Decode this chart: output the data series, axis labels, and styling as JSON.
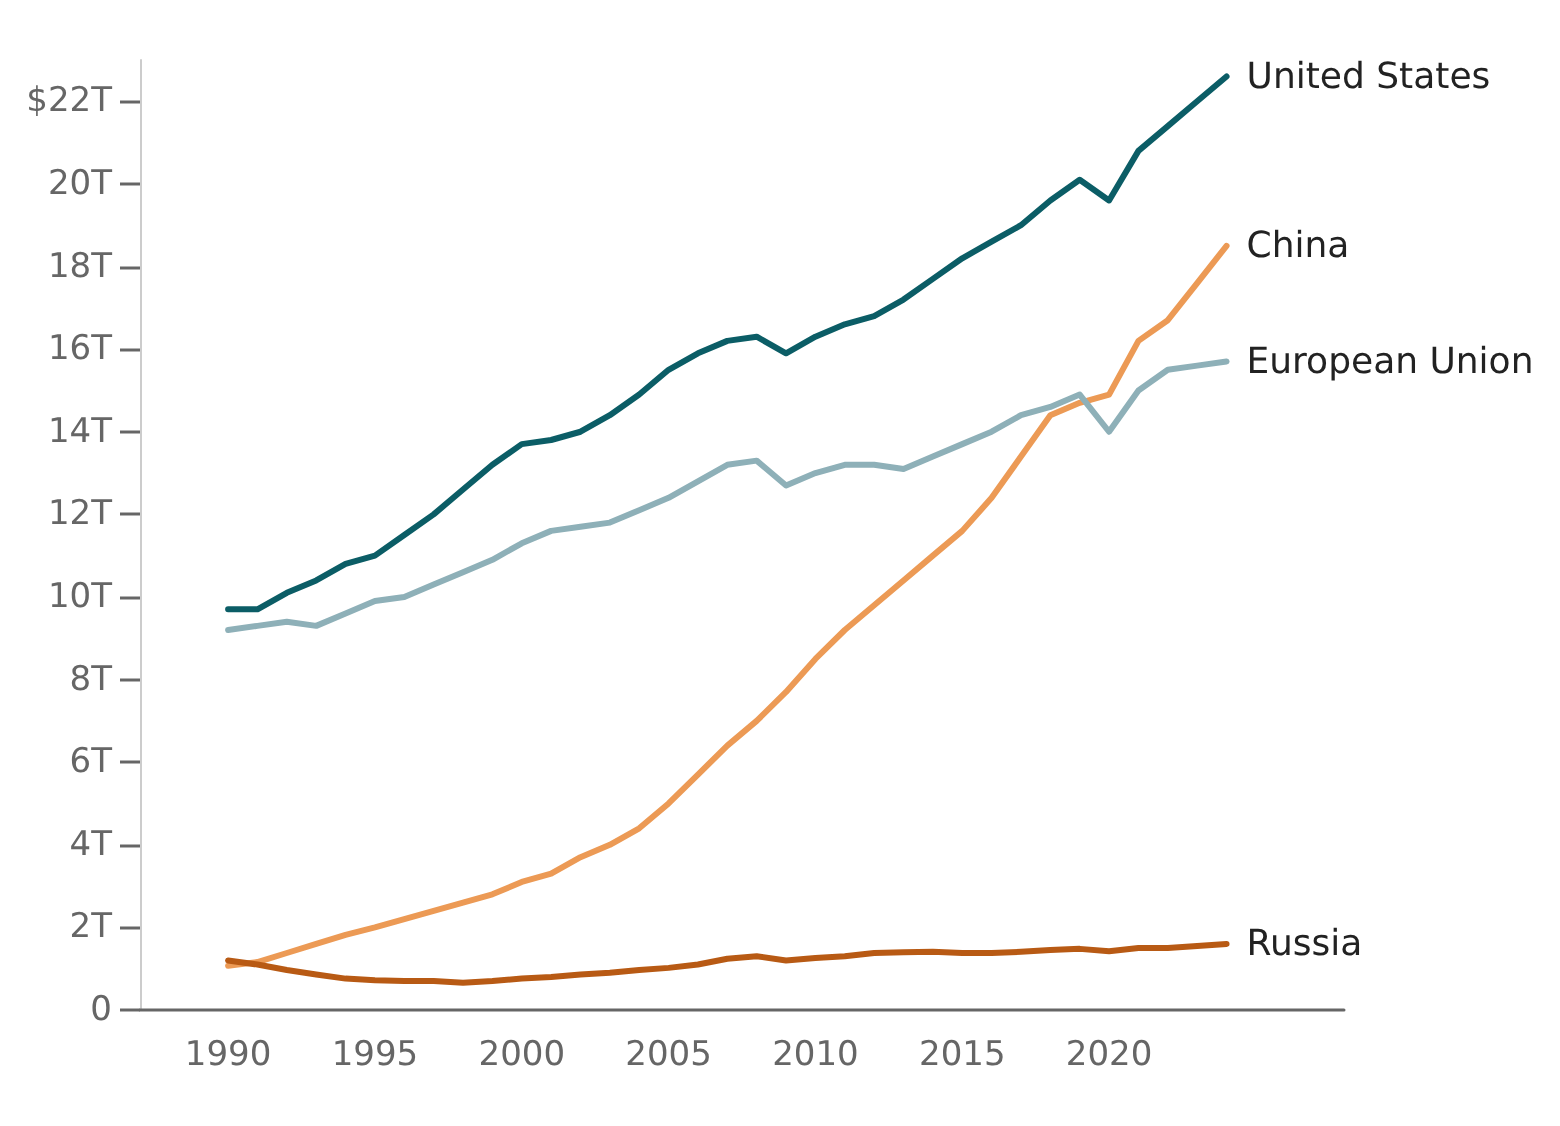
{
  "chart_data": {
    "type": "line",
    "x": [
      1990,
      1991,
      1992,
      1993,
      1994,
      1995,
      1996,
      1997,
      1998,
      1999,
      2000,
      2001,
      2002,
      2003,
      2004,
      2005,
      2006,
      2007,
      2008,
      2009,
      2010,
      2011,
      2012,
      2013,
      2014,
      2015,
      2016,
      2017,
      2018,
      2019,
      2020,
      2021,
      2022,
      2023,
      2024
    ],
    "series": [
      {
        "name": "United States",
        "color": "#0b5d66",
        "values": [
          9.7,
          9.7,
          10.1,
          10.4,
          10.8,
          11.0,
          11.5,
          12.0,
          12.6,
          13.2,
          13.7,
          13.8,
          14.0,
          14.4,
          14.9,
          15.5,
          15.9,
          16.2,
          16.3,
          15.9,
          16.3,
          16.6,
          16.8,
          17.2,
          17.7,
          18.2,
          18.6,
          19.0,
          19.6,
          20.1,
          19.6,
          20.8,
          21.4,
          22.0,
          22.6
        ]
      },
      {
        "name": "China",
        "color": "#ec9a55",
        "values": [
          1.07,
          1.16,
          1.38,
          1.6,
          1.82,
          2.0,
          2.2,
          2.4,
          2.6,
          2.8,
          3.1,
          3.3,
          3.7,
          4.0,
          4.4,
          5.0,
          5.7,
          6.4,
          7.0,
          7.7,
          8.5,
          9.2,
          9.8,
          10.4,
          11.0,
          11.6,
          12.4,
          13.4,
          14.4,
          14.7,
          14.9,
          16.2,
          16.7,
          17.6,
          18.5
        ]
      },
      {
        "name": "European Union",
        "color": "#8eb0b8",
        "values": [
          9.2,
          9.3,
          9.4,
          9.3,
          9.6,
          9.9,
          10.0,
          10.3,
          10.6,
          10.9,
          11.3,
          11.6,
          11.7,
          11.8,
          12.1,
          12.4,
          12.8,
          13.2,
          13.3,
          12.7,
          13.0,
          13.2,
          13.2,
          13.1,
          13.4,
          13.7,
          14.0,
          14.4,
          14.6,
          14.9,
          14.0,
          15.0,
          15.5,
          15.6,
          15.7
        ]
      },
      {
        "name": "Russia",
        "color": "#b85a14",
        "values": [
          1.2,
          1.1,
          0.97,
          0.86,
          0.76,
          0.72,
          0.7,
          0.7,
          0.66,
          0.7,
          0.76,
          0.8,
          0.86,
          0.9,
          0.97,
          1.02,
          1.1,
          1.24,
          1.3,
          1.2,
          1.26,
          1.3,
          1.38,
          1.4,
          1.41,
          1.38,
          1.38,
          1.41,
          1.45,
          1.48,
          1.42,
          1.5,
          1.5,
          1.55,
          1.6
        ]
      }
    ],
    "xlim": [
      1987,
      2028
    ],
    "xticks": [
      1990,
      1995,
      2000,
      2005,
      2010,
      2015,
      2020
    ],
    "ylim": [
      0,
      23
    ],
    "yticks": [
      0,
      {
        "value": 2,
        "label": "2T"
      },
      {
        "value": 4,
        "label": "4T"
      },
      {
        "value": 6,
        "label": "6T"
      },
      {
        "value": 8,
        "label": "8T"
      },
      {
        "value": 10,
        "label": "10T"
      },
      {
        "value": 12,
        "label": "12T"
      },
      {
        "value": 14,
        "label": "14T"
      },
      {
        "value": 16,
        "label": "16T"
      },
      {
        "value": 18,
        "label": "18T"
      },
      {
        "value": 20,
        "label": "20T"
      },
      {
        "value": 22,
        "label": "$22T"
      }
    ],
    "grid": false,
    "legend": false,
    "marker": "none",
    "line_style": "solid"
  }
}
